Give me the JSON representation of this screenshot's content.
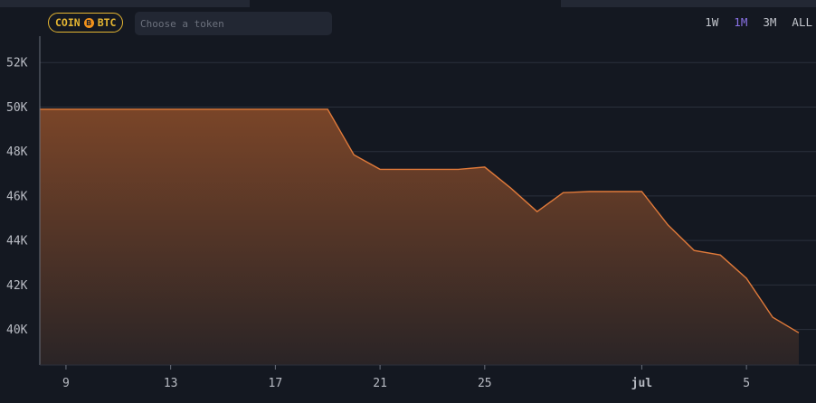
{
  "toolbar": {
    "badge_left": "COIN",
    "badge_icon": "B",
    "badge_right": "BTC",
    "search_placeholder": "Choose a token",
    "ranges": [
      {
        "label": "1W",
        "active": false
      },
      {
        "label": "1M",
        "active": true
      },
      {
        "label": "3M",
        "active": false
      },
      {
        "label": "ALL",
        "active": false
      }
    ]
  },
  "colors": {
    "background": "#141821",
    "line": "#e07a3a",
    "fill_top": "#7a4528",
    "fill_bottom": "#2a2426",
    "grid": "#2b303c",
    "badge": "#e5b632",
    "active_tab": "#8a72e6"
  },
  "chart_data": {
    "type": "area",
    "title": "",
    "xlabel": "",
    "ylabel": "",
    "x_start": "8",
    "x_end": "7",
    "x_ticks": [
      {
        "day": 9,
        "label": "9"
      },
      {
        "day": 13,
        "label": "13"
      },
      {
        "day": 17,
        "label": "17"
      },
      {
        "day": 21,
        "label": "21"
      },
      {
        "day": 25,
        "label": "25"
      },
      {
        "day": 31,
        "label": "jul",
        "bold": true
      },
      {
        "day": 35,
        "label": "5"
      }
    ],
    "y_ticks": [
      {
        "value": 40000,
        "label": "40K"
      },
      {
        "value": 42000,
        "label": "42K"
      },
      {
        "value": 44000,
        "label": "44K"
      },
      {
        "value": 46000,
        "label": "46K"
      },
      {
        "value": 48000,
        "label": "48K"
      },
      {
        "value": 50000,
        "label": "50K"
      },
      {
        "value": 52000,
        "label": "52K"
      }
    ],
    "ylim": [
      38400,
      52700
    ],
    "xlim": [
      8,
      37
    ],
    "series": [
      {
        "points": [
          [
            8,
            49900
          ],
          [
            9,
            49900
          ],
          [
            10,
            49900
          ],
          [
            11,
            49900
          ],
          [
            12,
            49900
          ],
          [
            13,
            49900
          ],
          [
            14,
            49900
          ],
          [
            15,
            49900
          ],
          [
            16,
            49900
          ],
          [
            17,
            49900
          ],
          [
            18,
            49900
          ],
          [
            19,
            49900
          ],
          [
            20,
            47850
          ],
          [
            21,
            47200
          ],
          [
            22,
            47200
          ],
          [
            23,
            47200
          ],
          [
            24,
            47200
          ],
          [
            25,
            47300
          ],
          [
            26,
            46350
          ],
          [
            27,
            45300
          ],
          [
            28,
            46150
          ],
          [
            29,
            46200
          ],
          [
            30,
            46200
          ],
          [
            31,
            46200
          ],
          [
            32,
            44700
          ],
          [
            33,
            43550
          ],
          [
            34,
            43350
          ],
          [
            35,
            42300
          ],
          [
            36,
            40550
          ],
          [
            37,
            39850
          ]
        ]
      }
    ],
    "grid": true,
    "legend": "none"
  }
}
